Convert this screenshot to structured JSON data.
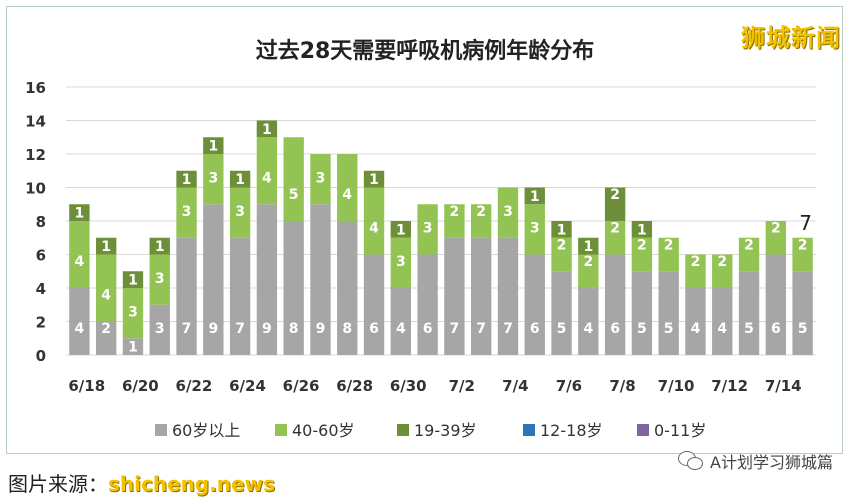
{
  "watermark": "狮城新闻",
  "footer": {
    "source_label": "图片来源：",
    "site": "shicheng.news",
    "account": "A计划学习狮城篇"
  },
  "chart_data": {
    "type": "bar",
    "stacked": true,
    "title": "过去28天需要呼吸机病例年龄分布",
    "ylim": [
      0,
      16
    ],
    "yticks": [
      0,
      2,
      4,
      6,
      8,
      10,
      12,
      14,
      16
    ],
    "grid": true,
    "legend_position": "bottom",
    "categories": [
      "6/18",
      "6/19",
      "6/20",
      "6/21",
      "6/22",
      "6/23",
      "6/24",
      "6/25",
      "6/26",
      "6/27",
      "6/28",
      "6/29",
      "6/30",
      "7/1",
      "7/2",
      "7/3",
      "7/4",
      "7/5",
      "7/6",
      "7/7",
      "7/8",
      "7/9",
      "7/10",
      "7/11",
      "7/12",
      "7/13",
      "7/14",
      "7/15"
    ],
    "xtick_labels": [
      "6/18",
      "",
      "6/20",
      "",
      "6/22",
      "",
      "6/24",
      "",
      "6/26",
      "",
      "6/28",
      "",
      "6/30",
      "",
      "7/2",
      "",
      "7/4",
      "",
      "7/6",
      "",
      "7/8",
      "",
      "7/10",
      "",
      "7/12",
      "",
      "7/14",
      ""
    ],
    "series": [
      {
        "name": "60岁以上",
        "color": "#a6a6a6",
        "values": [
          4,
          2,
          1,
          3,
          7,
          9,
          7,
          9,
          8,
          9,
          8,
          6,
          4,
          6,
          7,
          7,
          7,
          6,
          5,
          4,
          6,
          5,
          5,
          4,
          4,
          5,
          6,
          5
        ]
      },
      {
        "name": "40-60岁",
        "color": "#92c353",
        "values": [
          4,
          4,
          3,
          3,
          3,
          3,
          3,
          4,
          5,
          3,
          4,
          4,
          3,
          3,
          2,
          2,
          3,
          3,
          2,
          2,
          2,
          2,
          2,
          2,
          2,
          2,
          2,
          2
        ]
      },
      {
        "name": "19-39岁",
        "color": "#6e8f3a",
        "values": [
          1,
          1,
          1,
          1,
          1,
          1,
          1,
          1,
          0,
          0,
          0,
          1,
          1,
          0,
          0,
          0,
          0,
          1,
          1,
          1,
          2,
          1,
          0,
          0,
          0,
          0,
          0,
          0
        ]
      },
      {
        "name": "12-18岁",
        "color": "#2e75b6",
        "values": [
          0,
          0,
          0,
          0,
          0,
          0,
          0,
          0,
          0,
          0,
          0,
          0,
          0,
          0,
          0,
          0,
          0,
          0,
          0,
          0,
          0,
          0,
          0,
          0,
          0,
          0,
          0,
          0
        ]
      },
      {
        "name": "0-11岁",
        "color": "#8064a2",
        "values": [
          0,
          0,
          0,
          0,
          0,
          0,
          0,
          0,
          0,
          0,
          0,
          0,
          0,
          0,
          0,
          0,
          0,
          0,
          0,
          0,
          0,
          0,
          0,
          0,
          0,
          0,
          0,
          0
        ]
      }
    ],
    "annotations": [
      {
        "category": "7/15",
        "text": "7"
      }
    ]
  }
}
